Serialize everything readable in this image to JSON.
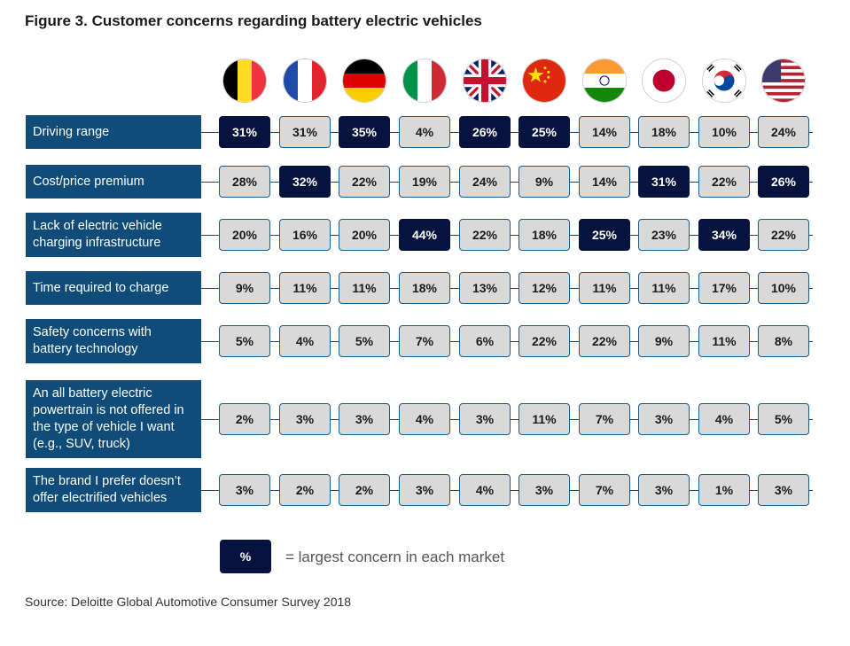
{
  "title": "Figure 3. Customer concerns regarding battery electric vehicles",
  "chart_data": {
    "type": "table",
    "markets": [
      "belgium-flag",
      "france-flag",
      "germany-flag",
      "italy-flag",
      "uk-flag",
      "china-flag",
      "india-flag",
      "japan-flag",
      "south-korea-flag",
      "usa-flag"
    ],
    "rows": [
      {
        "label": "Driving range",
        "values": [
          "31%",
          "31%",
          "35%",
          "4%",
          "26%",
          "25%",
          "14%",
          "18%",
          "10%",
          "24%"
        ],
        "highlight": [
          true,
          false,
          true,
          false,
          true,
          true,
          false,
          false,
          false,
          false
        ]
      },
      {
        "label": "Cost/price premium",
        "values": [
          "28%",
          "32%",
          "22%",
          "19%",
          "24%",
          "9%",
          "14%",
          "31%",
          "22%",
          "26%"
        ],
        "highlight": [
          false,
          true,
          false,
          false,
          false,
          false,
          false,
          true,
          false,
          true
        ]
      },
      {
        "label": "Lack of electric vehicle charging infrastructure",
        "values": [
          "20%",
          "16%",
          "20%",
          "44%",
          "22%",
          "18%",
          "25%",
          "23%",
          "34%",
          "22%"
        ],
        "highlight": [
          false,
          false,
          false,
          true,
          false,
          false,
          true,
          false,
          true,
          false
        ]
      },
      {
        "label": "Time required to charge",
        "values": [
          "9%",
          "11%",
          "11%",
          "18%",
          "13%",
          "12%",
          "11%",
          "11%",
          "17%",
          "10%"
        ],
        "highlight": [
          false,
          false,
          false,
          false,
          false,
          false,
          false,
          false,
          false,
          false
        ]
      },
      {
        "label": "Safety concerns with battery technology",
        "values": [
          "5%",
          "4%",
          "5%",
          "7%",
          "6%",
          "22%",
          "22%",
          "9%",
          "11%",
          "8%"
        ],
        "highlight": [
          false,
          false,
          false,
          false,
          false,
          false,
          false,
          false,
          false,
          false
        ]
      },
      {
        "label": "An all battery electric powertrain is not offered in the type of vehicle I want (e.g., SUV, truck)",
        "values": [
          "2%",
          "3%",
          "3%",
          "4%",
          "3%",
          "11%",
          "7%",
          "3%",
          "4%",
          "5%"
        ],
        "highlight": [
          false,
          false,
          false,
          false,
          false,
          false,
          false,
          false,
          false,
          false
        ]
      },
      {
        "label": "The brand I prefer doesn’t offer electrified vehicles",
        "values": [
          "3%",
          "2%",
          "2%",
          "3%",
          "4%",
          "3%",
          "7%",
          "3%",
          "1%",
          "3%"
        ],
        "highlight": [
          false,
          false,
          false,
          false,
          false,
          false,
          false,
          false,
          false,
          false
        ]
      }
    ],
    "colors": {
      "highlight": "#07133f",
      "label_bg": "#0f4c7a",
      "cell_bg": "#d9d9d9"
    }
  },
  "legend": {
    "box_text": "%",
    "text": "= largest concern in each market"
  },
  "source": "Source: Deloitte Global Automotive Consumer Survey 2018"
}
